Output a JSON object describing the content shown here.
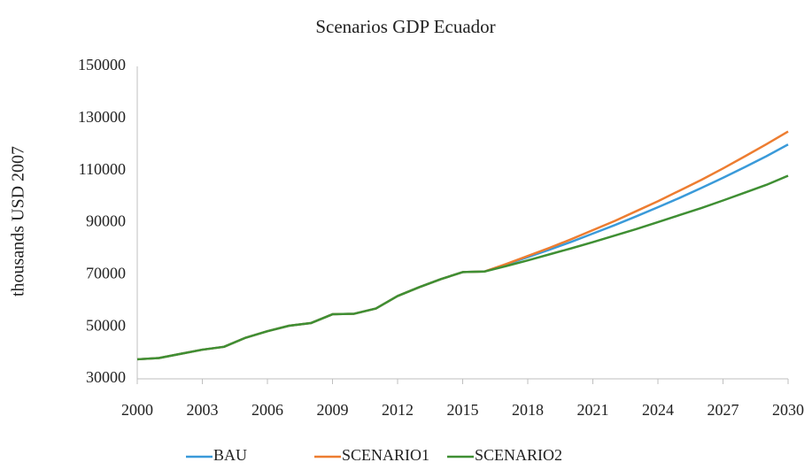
{
  "chart_data": {
    "type": "line",
    "title": "Scenarios GDP Ecuador",
    "y_label": "thousands USD 2007",
    "x": [
      2000,
      2001,
      2002,
      2003,
      2004,
      2005,
      2006,
      2007,
      2008,
      2009,
      2010,
      2011,
      2012,
      2013,
      2014,
      2015,
      2016,
      2017,
      2018,
      2019,
      2020,
      2021,
      2022,
      2023,
      2024,
      2025,
      2026,
      2027,
      2028,
      2029,
      2030
    ],
    "series": [
      {
        "name": "BAU",
        "color": "#3a9ad9",
        "values": [
          37500,
          38000,
          39600,
          41200,
          42300,
          45800,
          48300,
          50400,
          51400,
          54800,
          55000,
          57000,
          61800,
          65200,
          68300,
          71000,
          71200,
          73900,
          76700,
          79600,
          82600,
          85800,
          89000,
          92400,
          95900,
          99500,
          103300,
          107200,
          111300,
          115500,
          120000
        ]
      },
      {
        "name": "SCENARIO1",
        "color": "#ed7d31",
        "values": [
          37500,
          38000,
          39600,
          41200,
          42300,
          45800,
          48300,
          50400,
          51400,
          54800,
          55000,
          57000,
          61800,
          65200,
          68300,
          71000,
          71200,
          74100,
          77200,
          80300,
          83600,
          87100,
          90600,
          94400,
          98200,
          102300,
          106400,
          110800,
          115400,
          120100,
          125000
        ]
      },
      {
        "name": "SCENARIO2",
        "color": "#3f8f33",
        "values": [
          37500,
          38000,
          39600,
          41200,
          42300,
          45800,
          48300,
          50400,
          51400,
          54800,
          55000,
          57000,
          61800,
          65200,
          68300,
          71000,
          71200,
          73300,
          75500,
          77800,
          80100,
          82500,
          85000,
          87500,
          90200,
          92900,
          95600,
          98500,
          101500,
          104500,
          108000
        ]
      }
    ],
    "xlim": [
      2000,
      2030
    ],
    "xticks": [
      2000,
      2003,
      2006,
      2009,
      2012,
      2015,
      2018,
      2021,
      2024,
      2027,
      2030
    ],
    "ylim": [
      30000,
      150000
    ],
    "yticks": [
      30000,
      50000,
      70000,
      90000,
      110000,
      130000,
      150000
    ],
    "grid": false,
    "legend": "bottom"
  }
}
